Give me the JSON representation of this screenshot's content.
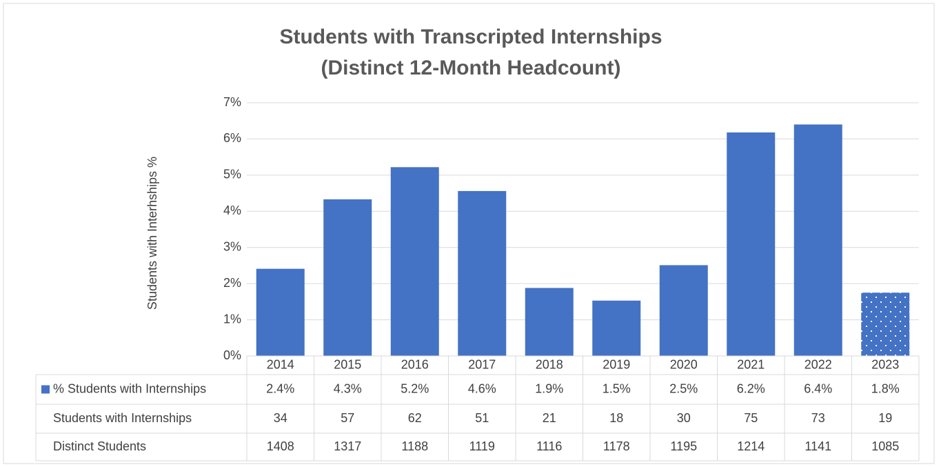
{
  "chart_data": {
    "type": "bar",
    "title": [
      "Students with Transcripted Internships",
      "(Distinct 12-Month Headcount)"
    ],
    "y_label": "Students with Interhships %",
    "categories": [
      "2014",
      "2015",
      "2016",
      "2017",
      "2018",
      "2019",
      "2020",
      "2021",
      "2022",
      "2023"
    ],
    "series": [
      {
        "name": "% Students with Internships",
        "color": "#4472c4",
        "values": [
          2.41,
          4.33,
          5.22,
          4.56,
          1.88,
          1.53,
          2.51,
          6.18,
          6.4,
          1.75
        ],
        "value_labels": [
          "2.4%",
          "4.3%",
          "5.2%",
          "4.6%",
          "1.9%",
          "1.5%",
          "2.5%",
          "6.2%",
          "6.4%",
          "1.8%"
        ],
        "patterns": [
          null,
          null,
          null,
          null,
          null,
          null,
          null,
          null,
          null,
          "dots"
        ]
      }
    ],
    "table_rows": [
      {
        "name": "Students with Internships",
        "values": [
          34,
          57,
          62,
          51,
          21,
          18,
          30,
          75,
          73,
          19
        ]
      },
      {
        "name": "Distinct Students",
        "values": [
          1408,
          1317,
          1188,
          1119,
          1116,
          1178,
          1195,
          1214,
          1141,
          1085
        ]
      }
    ],
    "ylim": [
      0,
      7
    ],
    "yticks": [
      {
        "value": 0,
        "label": "0%"
      },
      {
        "value": 1,
        "label": "1%"
      },
      {
        "value": 2,
        "label": "2%"
      },
      {
        "value": 3,
        "label": "3%"
      },
      {
        "value": 4,
        "label": "4%"
      },
      {
        "value": 5,
        "label": "5%"
      },
      {
        "value": 6,
        "label": "6%"
      },
      {
        "value": 7,
        "label": "7%"
      }
    ],
    "grid": true
  }
}
